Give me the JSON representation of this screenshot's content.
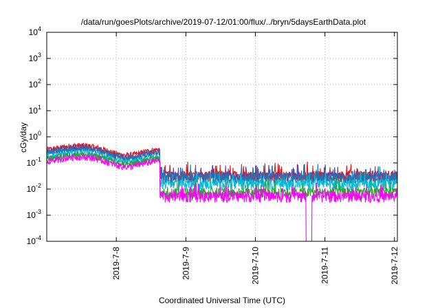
{
  "chart_data": {
    "type": "line",
    "title": "/data/run/goesPlots/archive/2019-07-12/01:00/flux/../bryn/5daysEarthData.plot",
    "xlabel": "Coordinated Universal Time (UTC)",
    "ylabel": "cGy/day",
    "yscale": "log",
    "ylim": [
      0.0001,
      10000
    ],
    "xlim": [
      "2019-07-07 00:00",
      "2019-07-12 01:00"
    ],
    "x_ticks": [
      "2019-7-8",
      "2019-7-9",
      "2019-7-10",
      "2019-7-11",
      "2019-7-12"
    ],
    "y_tick_mantissa": "10",
    "y_tick_exponents": [
      "-4",
      "-3",
      "-2",
      "-1",
      "0",
      "1",
      "2",
      "3",
      "4"
    ],
    "grid": true,
    "legend": "none",
    "step_time": "2019-07-08 15:00",
    "dip_time": "2019-07-10 18:30",
    "series": [
      {
        "color": "#e41a1c",
        "before": 0.33,
        "after": 0.034
      },
      {
        "color": "#6a3d9a",
        "before": 0.28,
        "after": 0.03
      },
      {
        "color": "#1f78b4",
        "before": 0.25,
        "after": 0.028
      },
      {
        "color": "#00bcd4",
        "before": 0.18,
        "after": 0.016
      },
      {
        "color": "#33a02c",
        "before": 0.15,
        "after": 0.0075
      },
      {
        "color": "#ff00ff",
        "before": 0.12,
        "after": 0.0055
      }
    ]
  }
}
